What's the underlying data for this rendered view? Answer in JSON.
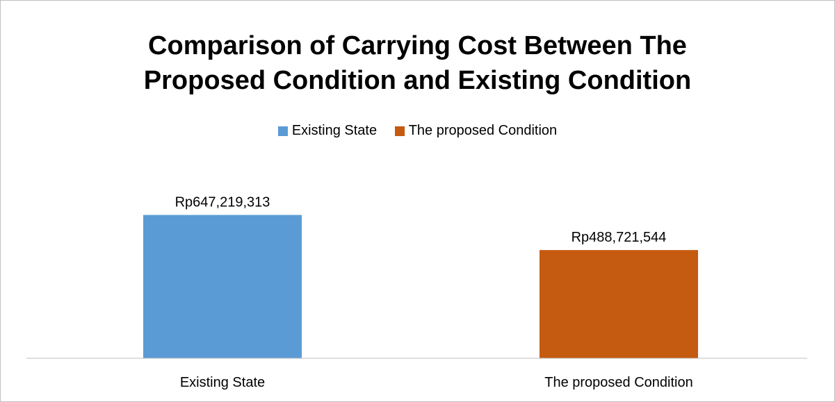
{
  "chart_data": {
    "type": "bar",
    "title": "Comparison of Carrying Cost Between The Proposed Condition and Existing Condition",
    "title_lines": [
      "Comparison of Carrying Cost Between The",
      "Proposed Condition and Existing Condition"
    ],
    "categories": [
      "Existing State",
      "The proposed Condition"
    ],
    "values": [
      647219313,
      488721544
    ],
    "data_labels": [
      "Rp647,219,313",
      "Rp488,721,544"
    ],
    "colors": [
      "#5b9bd5",
      "#c55a11"
    ],
    "legend": [
      {
        "label": "Existing State",
        "color": "#5b9bd5"
      },
      {
        "label": "The proposed Condition",
        "color": "#c55a11"
      }
    ],
    "legend_position": "top",
    "ylim": [
      0,
      900000000
    ],
    "grid": false
  }
}
